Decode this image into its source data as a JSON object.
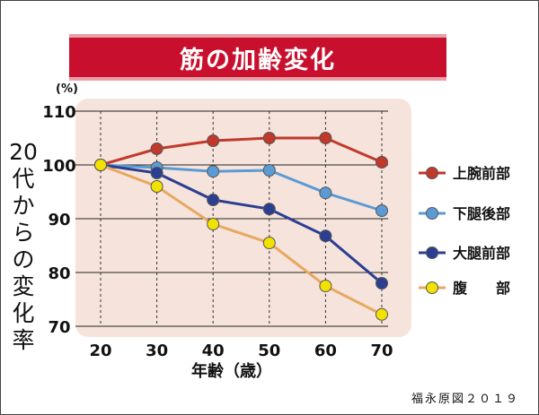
{
  "title": "筋の加齢変化",
  "credit": "福永原図２０１９",
  "chart_data": {
    "type": "line",
    "x": [
      20,
      30,
      40,
      50,
      60,
      70
    ],
    "xlabel": "年齢（歳）",
    "ylabel": "20代からの変化率",
    "yunit": "(%)",
    "ylim": [
      70,
      110
    ],
    "yticks": [
      70,
      80,
      90,
      100,
      110
    ],
    "grid": true,
    "legend": "right",
    "series": [
      {
        "name": "上腕前部",
        "color": "#c0392b",
        "values": [
          100,
          103,
          104.5,
          105,
          105,
          100.5
        ]
      },
      {
        "name": "下腿後部",
        "color": "#5b9bd5",
        "values": [
          100,
          99.5,
          98.8,
          99,
          94.8,
          91.5
        ]
      },
      {
        "name": "大腿前部",
        "color": "#2c3e91",
        "values": [
          100,
          98.5,
          93.5,
          91.8,
          86.8,
          78
        ]
      },
      {
        "name": "腹　　部",
        "color": "#e8a860",
        "markerColor": "#f2e200",
        "values": [
          100,
          96,
          89,
          85.5,
          77.5,
          72.2
        ]
      }
    ]
  }
}
